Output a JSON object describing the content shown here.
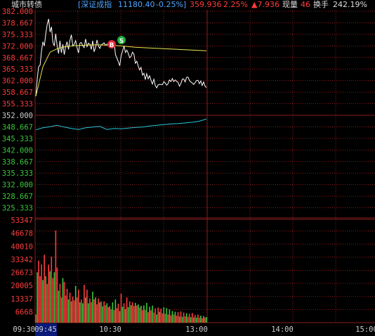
{
  "header": {
    "stock_name": "城市转债",
    "index_name": "[深证成指",
    "index_value": "11180.40",
    "index_change": "-0.25%]",
    "price": "359.936",
    "pct_change": "2.25%",
    "change": "▲7.936",
    "volume_label": "现量",
    "volume_value": "46",
    "turnover_label": "换手",
    "turnover_value": "242.19%"
  },
  "colors": {
    "background": "#000000",
    "up": "#ff3c3c",
    "down": "#3cc83c",
    "neutral": "#cccccc",
    "price_line": "#ffffff",
    "avg_line": "#e6e64c",
    "index_line": "#22c6d8",
    "grid": "#8a1e1e",
    "index_text": "#4fa5ff",
    "time_highlight": "#0a1a7a"
  },
  "markers": {
    "buy": "B",
    "sell": "S"
  },
  "chart_data": [
    {
      "type": "line",
      "title": "",
      "ylim": [
        325.333,
        382.0
      ],
      "y_ticks": [
        "382.000",
        "378.667",
        "375.333",
        "372.000",
        "368.667",
        "365.333",
        "362.000",
        "358.667",
        "355.333",
        "352.000",
        "348.667",
        "345.333",
        "342.000",
        "338.667",
        "335.333",
        "332.000",
        "328.667",
        "325.333"
      ],
      "base_price": "352.000",
      "series": [
        {
          "role": "price",
          "x": [
            0,
            1,
            2,
            3,
            4,
            5,
            6,
            7,
            8,
            9,
            10,
            11,
            12,
            13,
            14,
            15,
            16,
            17,
            18,
            19,
            20,
            21,
            22,
            23,
            24,
            25,
            26,
            27,
            28,
            29,
            30,
            31,
            32,
            33,
            34,
            35,
            36,
            37,
            38,
            39,
            40,
            41,
            42,
            43,
            44,
            45,
            46,
            47,
            48,
            49,
            50,
            51,
            52,
            53,
            54,
            55,
            56,
            57,
            58,
            59,
            60,
            61,
            62,
            63,
            64,
            65,
            66,
            67,
            68,
            69,
            70,
            71,
            72,
            73,
            74,
            75,
            76,
            77,
            78,
            79,
            80,
            81,
            82,
            83,
            84,
            85,
            86,
            87,
            88,
            89,
            90,
            91,
            92,
            93,
            94,
            95,
            96,
            97,
            98,
            99,
            100,
            101,
            102,
            103,
            104,
            105,
            106,
            107,
            108,
            109,
            110,
            111,
            112,
            113,
            114,
            115,
            116,
            117,
            118,
            119,
            120
          ],
          "values": [
            357.5,
            362.5,
            366.0,
            366.5,
            370.5,
            373.2,
            372.0,
            375.5,
            378.2,
            379.8,
            376.0,
            377.5,
            373.0,
            372.0,
            375.5,
            372.0,
            369.8,
            373.5,
            370.0,
            372.5,
            369.5,
            371.8,
            373.2,
            371.0,
            373.6,
            375.2,
            372.0,
            372.5,
            373.5,
            371.5,
            370.0,
            372.8,
            373.0,
            372.0,
            371.5,
            374.0,
            371.8,
            372.8,
            372.5,
            371.0,
            373.5,
            370.3,
            371.6,
            373.7,
            372.0,
            371.3,
            372.3,
            372.6,
            372.9,
            372.2,
            372.5,
            372.5,
            372.1,
            372.9,
            371.3,
            373.4,
            369.5,
            368.5,
            367.5,
            366.3,
            369.2,
            370.5,
            372.0,
            370.1,
            370.8,
            369.9,
            368.6,
            369.0,
            370.2,
            369.6,
            367.0,
            367.6,
            366.2,
            365.1,
            365.8,
            363.6,
            364.1,
            362.3,
            364.0,
            362.5,
            363.4,
            362.1,
            361.0,
            362.4,
            360.6,
            359.9,
            360.8,
            360.9,
            360.9,
            360.8,
            361.7,
            361.3,
            360.7,
            361.1,
            362.2,
            361.7,
            362.6,
            361.7,
            362.2,
            361.8,
            361.5,
            360.4,
            361.1,
            362.4,
            362.5,
            361.6,
            362.9,
            363.0,
            362.1,
            361.6,
            361.3,
            360.9,
            361.4,
            362.0,
            362.1,
            361.1,
            361.9,
            360.6,
            361.6,
            360.4,
            360.0
          ]
        },
        {
          "role": "average",
          "x": [
            0,
            5,
            10,
            15,
            20,
            25,
            30,
            35,
            40,
            45,
            50,
            55,
            60,
            65,
            70,
            75,
            80,
            85,
            90,
            95,
            100,
            105,
            110,
            115,
            120
          ],
          "values": [
            357.5,
            366.0,
            370.2,
            371.2,
            371.7,
            372.0,
            372.1,
            372.2,
            372.3,
            372.3,
            372.2,
            372.1,
            372.0,
            371.8,
            371.6,
            371.5,
            371.4,
            371.3,
            371.2,
            371.1,
            371.0,
            370.9,
            370.8,
            370.7,
            370.6
          ]
        },
        {
          "role": "index",
          "x": [
            0,
            5,
            10,
            15,
            20,
            25,
            30,
            35,
            40,
            45,
            50,
            55,
            60,
            65,
            70,
            75,
            80,
            85,
            90,
            95,
            100,
            105,
            110,
            115,
            120
          ],
          "values": [
            347.8,
            348.4,
            348.7,
            349.1,
            348.6,
            348.2,
            347.9,
            348.4,
            348.6,
            348.8,
            347.9,
            348.2,
            348.1,
            348.3,
            348.5,
            348.6,
            348.9,
            349.1,
            349.3,
            349.5,
            349.6,
            349.8,
            350.0,
            350.3,
            350.9
          ]
        }
      ]
    },
    {
      "type": "bar",
      "title": "",
      "ylim": [
        0,
        53347
      ],
      "y_ticks": [
        "53347",
        "46678",
        "40010",
        "33342",
        "26673",
        "20005",
        "13337",
        "6668"
      ],
      "x_ticks": [
        "09:30",
        "09:45",
        "10:30",
        "13:00",
        "14:00",
        "15:00"
      ],
      "values": [
        4200,
        26000,
        32000,
        24000,
        30000,
        22000,
        35000,
        24000,
        20000,
        30000,
        26500,
        34000,
        23000,
        26000,
        47500,
        28500,
        16500,
        20000,
        13000,
        23000,
        21000,
        14000,
        17500,
        12000,
        15500,
        11000,
        13500,
        11500,
        19000,
        13000,
        17000,
        10500,
        12000,
        10000,
        19500,
        13000,
        17000,
        10000,
        12500,
        10500,
        16000,
        12000,
        13000,
        9500,
        12500,
        10500,
        11000,
        8500,
        11000,
        9000,
        10000,
        8000,
        8500,
        7000,
        10500,
        6500,
        12000,
        7500,
        9800,
        6000,
        15000,
        8200,
        10000,
        7000,
        13000,
        8000,
        11000,
        9000,
        10500,
        8600,
        10200,
        8800,
        9400,
        7800,
        8700,
        6400,
        8900,
        6600,
        10200,
        5400,
        8200,
        6300,
        8800,
        5200,
        7400,
        4200,
        7800,
        5600,
        7200,
        4800,
        8000,
        4600,
        7500,
        4200,
        6800,
        3800,
        6000,
        4200,
        5600,
        3600,
        5400,
        3200,
        5800,
        3000,
        5200,
        3300,
        4900,
        3000,
        4600,
        2800,
        5000,
        2700,
        3900,
        2600,
        4200,
        2600,
        3600,
        2300,
        3400,
        2600,
        2900
      ],
      "colors": [
        "r",
        "g",
        "r",
        "r",
        "r",
        "g",
        "r",
        "g",
        "r",
        "r",
        "g",
        "r",
        "r",
        "g",
        "r",
        "r",
        "g",
        "r",
        "r",
        "g",
        "r",
        "r",
        "r",
        "g",
        "r",
        "g",
        "r",
        "r",
        "g",
        "r",
        "r",
        "g",
        "r",
        "g",
        "r",
        "g",
        "r",
        "g",
        "r",
        "r",
        "g",
        "r",
        "g",
        "r",
        "r",
        "g",
        "r",
        "g",
        "r",
        "r",
        "g",
        "r",
        "g",
        "r",
        "g",
        "r",
        "g",
        "r",
        "r",
        "g",
        "r",
        "g",
        "r",
        "g",
        "r",
        "g",
        "r",
        "g",
        "r",
        "r",
        "g",
        "r",
        "g",
        "r",
        "g",
        "r",
        "g",
        "r",
        "g",
        "r",
        "g",
        "r",
        "g",
        "r",
        "r",
        "g",
        "r",
        "g",
        "r",
        "r",
        "g",
        "r",
        "g",
        "r",
        "g",
        "r",
        "g",
        "r",
        "g",
        "r",
        "r",
        "g",
        "r",
        "g",
        "r",
        "r",
        "g",
        "r",
        "r",
        "g",
        "r",
        "g",
        "r",
        "g",
        "r",
        "r",
        "g",
        "r",
        "g",
        "r",
        "g"
      ]
    }
  ]
}
